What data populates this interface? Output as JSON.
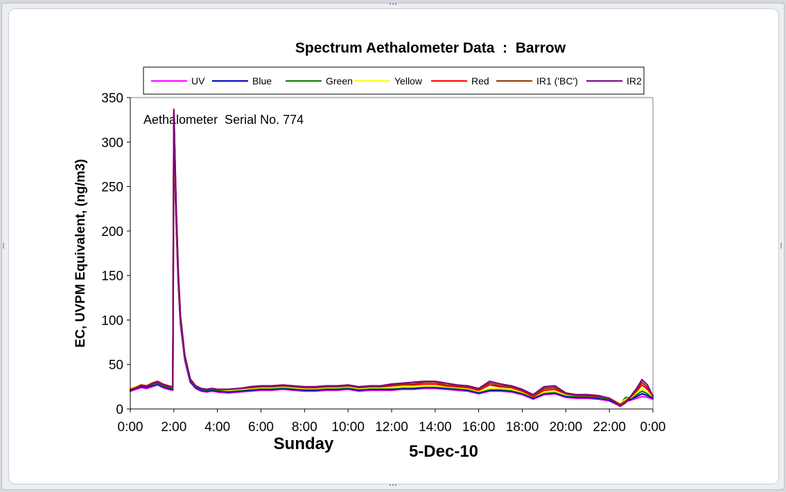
{
  "chart_data": {
    "type": "line",
    "title": "Spectrum Aethalometer Data  :  Barrow",
    "ylabel": "EC, UVPM Equivalent, (ng/m3)",
    "xlabel_left": "Sunday",
    "xlabel_right": "5-Dec-10",
    "annotation": "Aethalometer  Serial No. 774",
    "ylim": [
      0,
      350
    ],
    "xlim": [
      0,
      24
    ],
    "yticks": [
      0,
      50,
      100,
      150,
      200,
      250,
      300,
      350
    ],
    "ytick_labels": [
      "0",
      "50",
      "100",
      "150",
      "200",
      "250",
      "300",
      "350"
    ],
    "xticks": [
      0,
      2,
      4,
      6,
      8,
      10,
      12,
      14,
      16,
      18,
      20,
      22,
      24
    ],
    "xtick_labels": [
      "0:00",
      "2:00",
      "4:00",
      "6:00",
      "8:00",
      "10:00",
      "12:00",
      "14:00",
      "16:00",
      "18:00",
      "20:00",
      "22:00",
      "0:00"
    ],
    "grid": false,
    "legend_position": "top",
    "x": [
      0,
      0.25,
      0.5,
      0.75,
      1,
      1.25,
      1.5,
      1.75,
      1.95,
      2.0,
      2.1,
      2.2,
      2.3,
      2.5,
      2.75,
      3,
      3.25,
      3.5,
      3.75,
      4,
      4.5,
      5,
      5.5,
      6,
      6.5,
      7,
      7.5,
      8,
      8.5,
      9,
      9.5,
      10,
      10.5,
      11,
      11.5,
      12,
      12.5,
      13,
      13.5,
      14,
      14.5,
      15,
      15.5,
      16,
      16.5,
      17,
      17.5,
      18,
      18.5,
      19,
      19.5,
      20,
      20.5,
      21,
      21.5,
      22,
      22.5,
      22.75,
      23,
      23.25,
      23.5,
      23.75,
      24
    ],
    "series": [
      {
        "name": "UV",
        "color": "#ff00ff",
        "values": [
          20,
          22,
          24,
          23,
          25,
          27,
          24,
          22,
          21,
          300,
          210,
          140,
          95,
          55,
          30,
          23,
          20,
          19,
          20,
          19,
          18,
          19,
          20,
          21,
          21,
          22,
          21,
          20,
          20,
          21,
          21,
          22,
          20,
          21,
          21,
          21,
          22,
          22,
          23,
          23,
          22,
          21,
          20,
          17,
          20,
          20,
          19,
          16,
          11,
          16,
          17,
          13,
          12,
          12,
          11,
          9,
          3,
          8,
          10,
          12,
          14,
          13,
          11
        ]
      },
      {
        "name": "Blue",
        "color": "#0000cc",
        "values": [
          21,
          23,
          25,
          24,
          26,
          28,
          25,
          23,
          22,
          310,
          215,
          145,
          98,
          57,
          31,
          24,
          21,
          20,
          21,
          20,
          19,
          20,
          21,
          22,
          22,
          23,
          22,
          21,
          21,
          22,
          22,
          23,
          21,
          22,
          22,
          22,
          23,
          23,
          24,
          24,
          23,
          22,
          21,
          18,
          21,
          21,
          20,
          17,
          12,
          17,
          18,
          14,
          13,
          13,
          12,
          10,
          4,
          9,
          11,
          14,
          17,
          15,
          12
        ]
      },
      {
        "name": "Green",
        "color": "#008000",
        "values": [
          22,
          24,
          26,
          25,
          27,
          29,
          26,
          24,
          23,
          315,
          218,
          147,
          100,
          58,
          32,
          25,
          22,
          21,
          22,
          21,
          20,
          21,
          22,
          23,
          23,
          24,
          23,
          22,
          22,
          23,
          23,
          24,
          22,
          23,
          23,
          23,
          24,
          24,
          25,
          25,
          24,
          23,
          22,
          19,
          22,
          22,
          21,
          18,
          13,
          18,
          19,
          15,
          14,
          14,
          13,
          11,
          5,
          13,
          12,
          16,
          20,
          17,
          13
        ]
      },
      {
        "name": "Yellow",
        "color": "#ffff00",
        "values": [
          23,
          25,
          27,
          26,
          28,
          30,
          27,
          25,
          24,
          320,
          222,
          150,
          102,
          59,
          33,
          26,
          23,
          22,
          23,
          22,
          21,
          22,
          23,
          24,
          24,
          25,
          24,
          23,
          23,
          24,
          24,
          25,
          23,
          24,
          24,
          24,
          25,
          25,
          26,
          26,
          25,
          24,
          23,
          20,
          23,
          23,
          22,
          19,
          14,
          19,
          20,
          16,
          15,
          15,
          14,
          12,
          6,
          11,
          13,
          18,
          23,
          19,
          14
        ]
      },
      {
        "name": "Red",
        "color": "#ff0000",
        "values": [
          22,
          24,
          27,
          26,
          29,
          31,
          28,
          26,
          25,
          330,
          228,
          154,
          104,
          60,
          33,
          26,
          23,
          22,
          23,
          22,
          22,
          23,
          24,
          25,
          25,
          26,
          25,
          24,
          24,
          25,
          25,
          26,
          24,
          25,
          25,
          26,
          27,
          27,
          28,
          28,
          26,
          25,
          24,
          21,
          27,
          25,
          24,
          20,
          14,
          21,
          22,
          17,
          15,
          15,
          14,
          12,
          5,
          9,
          14,
          20,
          27,
          22,
          15
        ]
      },
      {
        "name": "IR1 ('BC')",
        "color": "#993300",
        "values": [
          21,
          24,
          27,
          26,
          29,
          31,
          28,
          26,
          25,
          337,
          232,
          156,
          105,
          61,
          34,
          26,
          23,
          22,
          23,
          22,
          22,
          23,
          24,
          25,
          25,
          26,
          25,
          24,
          24,
          25,
          25,
          26,
          24,
          25,
          25,
          27,
          28,
          28,
          30,
          30,
          27,
          26,
          25,
          22,
          29,
          26,
          25,
          21,
          15,
          23,
          24,
          17,
          15,
          15,
          14,
          12,
          5,
          8,
          14,
          21,
          30,
          24,
          15
        ]
      },
      {
        "name": "IR2",
        "color": "#800080",
        "values": [
          20,
          23,
          26,
          25,
          28,
          30,
          27,
          25,
          24,
          335,
          230,
          155,
          104,
          60,
          33,
          26,
          23,
          22,
          23,
          22,
          22,
          23,
          25,
          26,
          26,
          27,
          26,
          25,
          25,
          26,
          26,
          27,
          25,
          26,
          26,
          28,
          29,
          30,
          31,
          31,
          29,
          27,
          26,
          23,
          31,
          28,
          26,
          22,
          16,
          25,
          26,
          18,
          16,
          16,
          15,
          12,
          3,
          7,
          15,
          23,
          33,
          27,
          14
        ]
      }
    ]
  }
}
